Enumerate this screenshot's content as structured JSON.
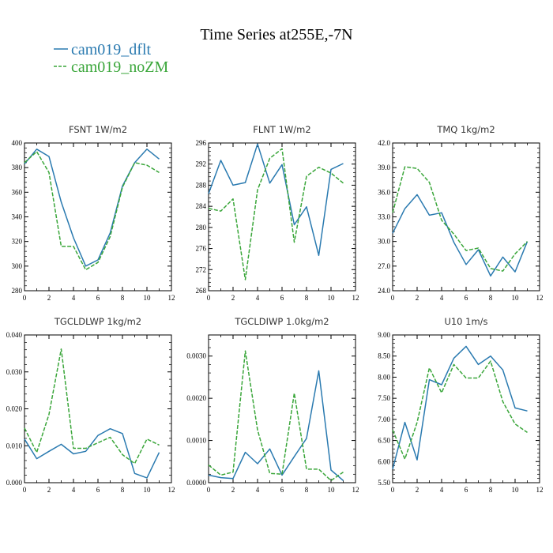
{
  "title": "Time Series at255E,-7N",
  "legend": [
    {
      "name": "cam019_dflt",
      "color": "#2a7ab0",
      "dash": "solid"
    },
    {
      "name": "cam019_noZM",
      "color": "#3aa63a",
      "dash": "dashed"
    }
  ],
  "chart_data": [
    {
      "type": "line",
      "title": "FSNT   1W/m2",
      "xlim": [
        0,
        12
      ],
      "ylim": [
        280,
        400
      ],
      "xticks": [
        0,
        2,
        4,
        6,
        8,
        10,
        12
      ],
      "yticks": [
        280,
        300,
        320,
        340,
        360,
        380,
        400
      ],
      "ytick_labels": [
        "280",
        "300",
        "320",
        "340",
        "360",
        "380",
        "400"
      ],
      "x": [
        0,
        1,
        2,
        3,
        4,
        5,
        6,
        7,
        8,
        9,
        10,
        11
      ],
      "series": [
        {
          "name": "cam019_dflt",
          "values": [
            383,
            395,
            389,
            352,
            323,
            300,
            305,
            327,
            365,
            384,
            395,
            387
          ]
        },
        {
          "name": "cam019_noZM",
          "values": [
            384,
            393,
            376,
            316,
            316,
            297,
            303,
            324,
            364,
            384,
            382,
            376
          ]
        }
      ]
    },
    {
      "type": "line",
      "title": "FLNT   1W/m2",
      "xlim": [
        0,
        12
      ],
      "ylim": [
        268,
        296
      ],
      "xticks": [
        0,
        2,
        4,
        6,
        8,
        10,
        12
      ],
      "yticks": [
        268,
        272,
        276,
        280,
        284,
        288,
        292,
        296
      ],
      "ytick_labels": [
        "268",
        "272",
        "276",
        "280",
        "284",
        "288",
        "292",
        "296"
      ],
      "x": [
        0,
        1,
        2,
        3,
        4,
        5,
        6,
        7,
        8,
        9,
        10,
        11
      ],
      "series": [
        {
          "name": "cam019_dflt",
          "values": [
            286.4,
            292.7,
            288.0,
            288.5,
            295.8,
            288.4,
            291.9,
            280.5,
            283.9,
            274.7,
            291.0,
            292.1
          ]
        },
        {
          "name": "cam019_noZM",
          "values": [
            283.6,
            283.1,
            285.4,
            270.1,
            287.1,
            293.1,
            294.9,
            277.2,
            289.7,
            291.4,
            290.3,
            288.4
          ]
        }
      ]
    },
    {
      "type": "line",
      "title": "TMQ   1kg/m2",
      "xlim": [
        0,
        12
      ],
      "ylim": [
        24,
        42
      ],
      "xticks": [
        0,
        2,
        4,
        6,
        8,
        10,
        12
      ],
      "yticks": [
        24,
        27,
        30,
        33,
        36,
        39,
        42
      ],
      "ytick_labels": [
        "24.0",
        "27.0",
        "30.0",
        "33.0",
        "36.0",
        "39.0",
        "42.0"
      ],
      "x": [
        0,
        1,
        2,
        3,
        4,
        5,
        6,
        7,
        8,
        9,
        10,
        11
      ],
      "series": [
        {
          "name": "cam019_dflt",
          "values": [
            31.0,
            34.0,
            35.7,
            33.2,
            33.5,
            29.9,
            27.2,
            29.0,
            25.8,
            28.1,
            26.3,
            30.0
          ]
        },
        {
          "name": "cam019_noZM",
          "values": [
            33.5,
            39.1,
            38.9,
            37.2,
            32.6,
            30.9,
            28.9,
            29.2,
            26.7,
            26.4,
            28.5,
            30.0
          ]
        }
      ]
    },
    {
      "type": "line",
      "title": "TGCLDLWP   1kg/m2",
      "xlim": [
        0,
        12
      ],
      "ylim": [
        0,
        0.04
      ],
      "xticks": [
        0,
        2,
        4,
        6,
        8,
        10,
        12
      ],
      "yticks": [
        0,
        0.01,
        0.02,
        0.03,
        0.04
      ],
      "ytick_labels": [
        "0.000",
        "0.010",
        "0.020",
        "0.030",
        "0.040"
      ],
      "x": [
        0,
        1,
        2,
        3,
        4,
        5,
        6,
        7,
        8,
        9,
        10,
        11
      ],
      "series": [
        {
          "name": "cam019_dflt",
          "values": [
            0.0118,
            0.0065,
            0.0085,
            0.0104,
            0.0078,
            0.0085,
            0.0128,
            0.0146,
            0.0133,
            0.0025,
            0.0013,
            0.0082
          ]
        },
        {
          "name": "cam019_noZM",
          "values": [
            0.0148,
            0.0082,
            0.0185,
            0.0362,
            0.0093,
            0.0093,
            0.0108,
            0.0123,
            0.0076,
            0.0052,
            0.0118,
            0.0102
          ]
        }
      ]
    },
    {
      "type": "line",
      "title": "TGCLDIWP   1.0kg/m2",
      "xlim": [
        0,
        12
      ],
      "ylim": [
        0,
        0.0035
      ],
      "xticks": [
        0,
        2,
        4,
        6,
        8,
        10,
        12
      ],
      "yticks": [
        0,
        0.001,
        0.002,
        0.003
      ],
      "ytick_labels": [
        "0.0000",
        "0.0010",
        "0.0020",
        "0.0030"
      ],
      "x": [
        0,
        1,
        2,
        3,
        4,
        5,
        6,
        7,
        8,
        9,
        10,
        11
      ],
      "series": [
        {
          "name": "cam019_dflt",
          "values": [
            0.00018,
            0.00012,
            0.0001,
            0.00072,
            0.00045,
            0.0008,
            0.00018,
            0.00062,
            0.00105,
            0.00265,
            0.0003,
            5e-05
          ]
        },
        {
          "name": "cam019_noZM",
          "values": [
            0.00042,
            0.00018,
            0.00025,
            0.00312,
            0.00125,
            0.00022,
            0.0002,
            0.00212,
            0.00032,
            0.00032,
            5e-05,
            0.00025
          ]
        }
      ]
    },
    {
      "type": "line",
      "title": "U10   1m/s",
      "xlim": [
        0,
        12
      ],
      "ylim": [
        5.5,
        9
      ],
      "xticks": [
        0,
        2,
        4,
        6,
        8,
        10,
        12
      ],
      "yticks": [
        5.5,
        6,
        6.5,
        7,
        7.5,
        8,
        8.5,
        9
      ],
      "ytick_labels": [
        "5.50",
        "6.00",
        "6.50",
        "7.00",
        "7.50",
        "8.00",
        "8.50",
        "9.00"
      ],
      "x": [
        0,
        1,
        2,
        3,
        4,
        5,
        6,
        7,
        8,
        9,
        10,
        11
      ],
      "series": [
        {
          "name": "cam019_dflt",
          "values": [
            5.82,
            6.93,
            6.04,
            7.94,
            7.82,
            8.45,
            8.73,
            8.3,
            8.5,
            8.17,
            7.27,
            7.2
          ]
        },
        {
          "name": "cam019_noZM",
          "values": [
            6.75,
            6.06,
            6.93,
            8.22,
            7.63,
            8.3,
            7.98,
            7.98,
            8.38,
            7.42,
            6.89,
            6.69
          ]
        }
      ]
    }
  ]
}
